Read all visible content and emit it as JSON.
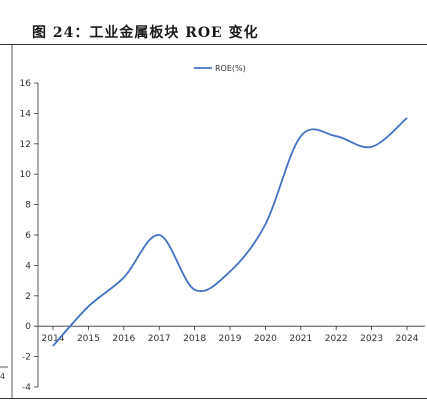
{
  "figure": {
    "title": "图 24：工业金属板块 ROE 变化",
    "left_fragment": "4"
  },
  "colors": {
    "line": "#4472C4",
    "axis": "#333333",
    "rule": "#333333"
  },
  "chart_data": {
    "type": "line",
    "x": [
      "2014",
      "2015",
      "2016",
      "2017",
      "2018",
      "2019",
      "2020",
      "2021",
      "2022",
      "2023",
      "2024"
    ],
    "series": [
      {
        "name": "ROE(%)",
        "values": [
          -1.3,
          1.3,
          3.2,
          6.0,
          2.4,
          3.6,
          6.7,
          12.5,
          12.5,
          11.8,
          13.7
        ]
      }
    ],
    "ylim": [
      -4,
      16
    ],
    "yticks": [
      -4,
      -2,
      0,
      2,
      4,
      6,
      8,
      10,
      12,
      14,
      16
    ],
    "title": "",
    "xlabel": "",
    "ylabel": "",
    "legend": "top-center",
    "grid": false
  }
}
